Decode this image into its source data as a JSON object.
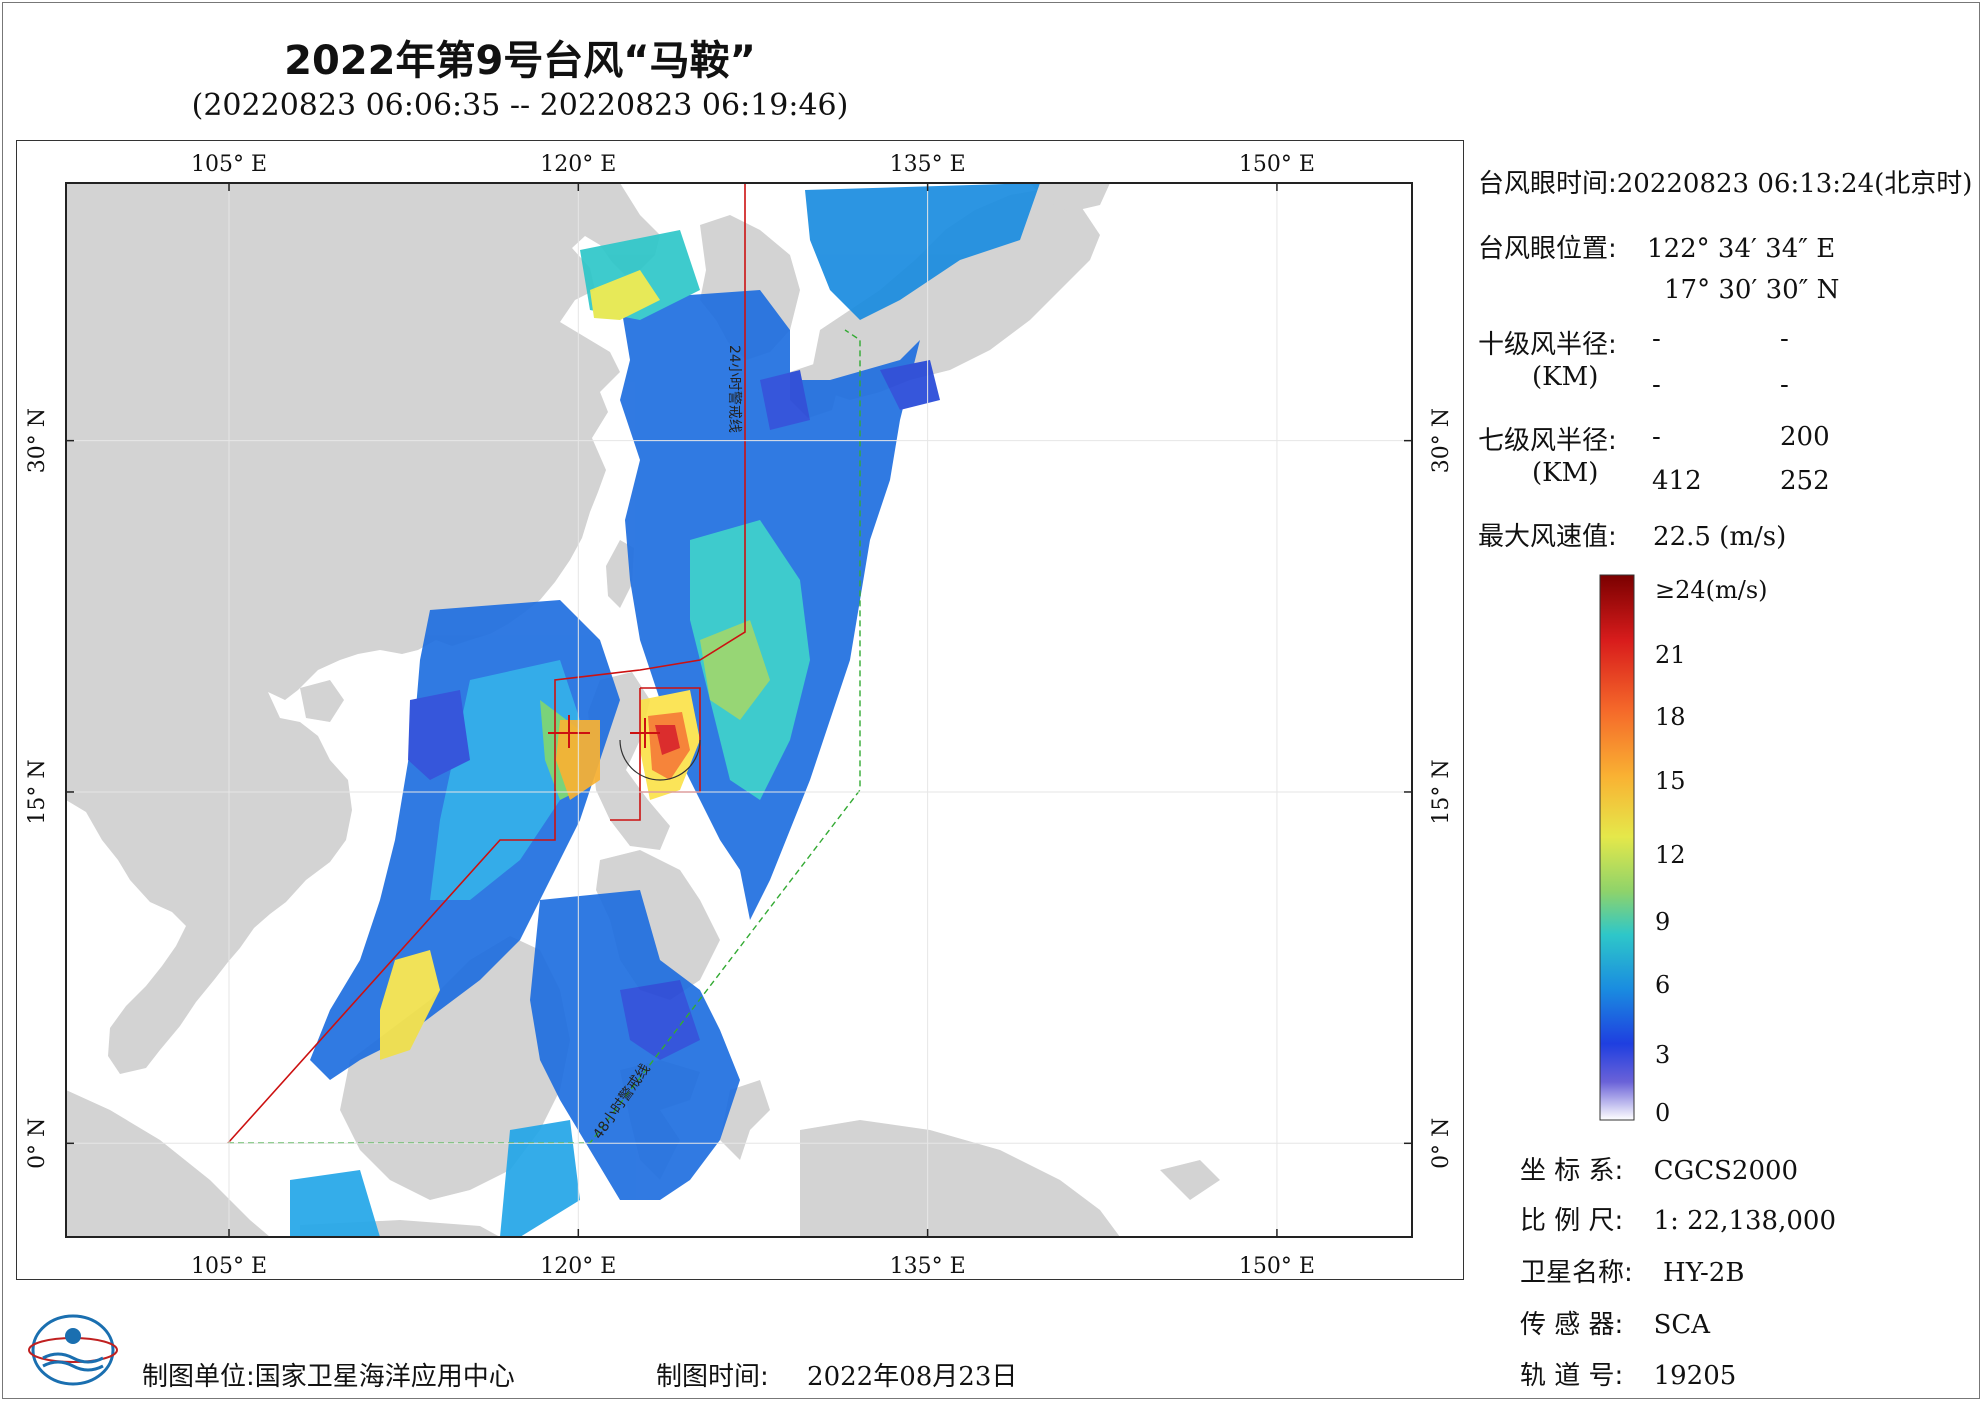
{
  "header": {
    "title": "2022年第9号台风“马鞍”",
    "subtitle": "(20220823 06:06:35 -- 20220823 06:19:46)"
  },
  "axes": {
    "lon_labels": [
      "105° E",
      "120° E",
      "135° E",
      "150° E"
    ],
    "lat_labels": [
      "30° N",
      "15° N",
      "0° N"
    ],
    "lon_values": [
      105,
      120,
      135,
      150
    ],
    "lat_values": [
      30,
      15,
      0
    ]
  },
  "track_labels": [
    "24小时警戒线",
    "48小时警戒线"
  ],
  "info": {
    "eye_time_label": "台风眼时间:",
    "eye_time_value": "20220823 06:13:24(北京时)",
    "eye_pos_label": "台风眼位置:",
    "eye_lon": "122° 34′ 34″ E",
    "eye_lat": "17° 30′ 30″ N",
    "r10_label": "十级风半径:",
    "r10_unit": "(KM)",
    "r10_values": [
      "-",
      "-",
      "-",
      "-"
    ],
    "r7_label": "七级风半径:",
    "r7_unit": "(KM)",
    "r7_values": [
      "-",
      "200",
      "412",
      "252"
    ],
    "max_wind_label": "最大风速值:",
    "max_wind_value": "22.5 (m/s)"
  },
  "colorbar": {
    "labels": [
      "≥24(m/s)",
      "21",
      "18",
      "15",
      "12",
      "9",
      "6",
      "3",
      "0"
    ],
    "colors": [
      "#8b0000",
      "#d7191c",
      "#f46d43",
      "#fdae61",
      "#fee08b",
      "#c7e9b4",
      "#41b6c4",
      "#2c7fb8",
      "#253494",
      "#3f2fd6",
      "#b6b0e8",
      "#ffffff"
    ]
  },
  "metadata": [
    {
      "label": "坐 标 系:",
      "value": "CGCS2000"
    },
    {
      "label": "比 例 尺:",
      "value": "1: 22,138,000"
    },
    {
      "label": "卫星名称:",
      "value": "HY-2B"
    },
    {
      "label": "传 感 器:",
      "value": "SCA"
    },
    {
      "label": "轨 道 号:",
      "value": "19205"
    }
  ],
  "footer": {
    "unit_label": "制图单位:",
    "unit_value": "国家卫星海洋应用中心",
    "time_label": "制图时间:",
    "time_value": "2022年08月23日"
  },
  "colors": {
    "land": "#d3d3d3",
    "sea": "#ffffff",
    "warning24": "#cc1111",
    "warning48": "#33aa33"
  }
}
